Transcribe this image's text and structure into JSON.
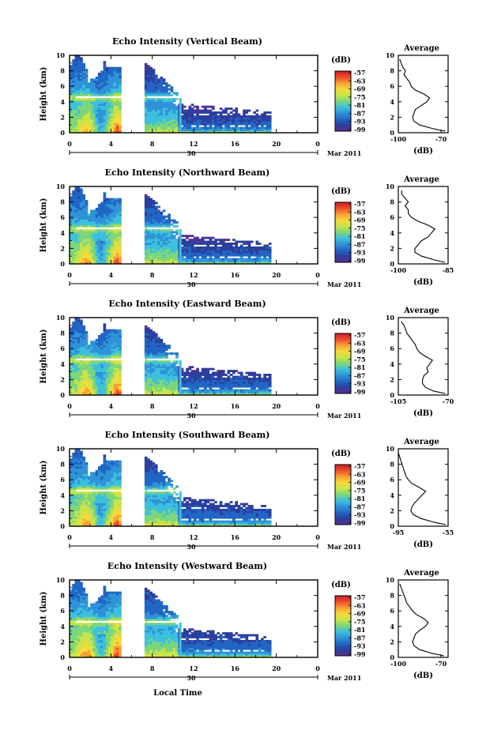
{
  "figure": {
    "date_label": "Mar 2011",
    "day_label": "30",
    "xlabel_bottom": "Local Time",
    "colors": {
      "scale": [
        "#5a2f91",
        "#2c3f9e",
        "#2166c4",
        "#2f93d8",
        "#3dc0dd",
        "#7dd67a",
        "#c7e44a",
        "#f6d93a",
        "#f7a034",
        "#ec4d2b",
        "#c71f2a"
      ]
    }
  },
  "chart_data": [
    {
      "type": "heatmap",
      "title": "Echo Intensity (Vertical Beam)",
      "ylabel": "Height (km)",
      "xlabel": "",
      "xticks": [
        "0",
        "4",
        "8",
        "12",
        "16",
        "20",
        "0"
      ],
      "yticks": [
        "0",
        "2",
        "4",
        "6",
        "8",
        "10"
      ],
      "xlim": [
        0,
        24
      ],
      "ylim": [
        0,
        10
      ],
      "colorbar": {
        "label": "(dB)",
        "ticks": [
          "-57",
          "-63",
          "-69",
          "-75",
          "-81",
          "-87",
          "-93",
          "-99"
        ]
      },
      "profile": {
        "title": "Average",
        "xlabel": "(dB)",
        "xticks": [
          "-100",
          "-70"
        ],
        "xlim": [
          -100,
          -65
        ],
        "yticks": [
          "0",
          "2",
          "4",
          "6",
          "8",
          "10"
        ],
        "points": [
          [
            -67,
            0.2
          ],
          [
            -75,
            0.5
          ],
          [
            -85,
            1.0
          ],
          [
            -89,
            1.5
          ],
          [
            -90,
            2.0
          ],
          [
            -89,
            2.5
          ],
          [
            -88,
            3.0
          ],
          [
            -84,
            3.5
          ],
          [
            -80,
            4.0
          ],
          [
            -78,
            4.5
          ],
          [
            -82,
            5.0
          ],
          [
            -88,
            5.5
          ],
          [
            -91,
            6.0
          ],
          [
            -92,
            6.5
          ],
          [
            -94,
            7.0
          ],
          [
            -96,
            7.5
          ],
          [
            -95,
            8.0
          ],
          [
            -97,
            8.5
          ],
          [
            -98,
            9.0
          ],
          [
            -99,
            9.5
          ]
        ]
      }
    },
    {
      "type": "heatmap",
      "title": "Echo Intensity (Northward Beam)",
      "ylabel": "Height (km)",
      "xlabel": "",
      "xticks": [
        "0",
        "4",
        "8",
        "12",
        "16",
        "20",
        "0"
      ],
      "yticks": [
        "0",
        "2",
        "4",
        "6",
        "8",
        "10"
      ],
      "xlim": [
        0,
        24
      ],
      "ylim": [
        0,
        10
      ],
      "colorbar": {
        "label": "(dB)",
        "ticks": [
          "-57",
          "-63",
          "-69",
          "-75",
          "-81",
          "-87",
          "-93",
          "-99"
        ]
      },
      "profile": {
        "title": "Average",
        "xlabel": "(dB)",
        "xticks": [
          "-100",
          "-85"
        ],
        "xlim": [
          -100,
          -85
        ],
        "yticks": [
          "0",
          "2",
          "4",
          "6",
          "8",
          "10"
        ],
        "points": [
          [
            -86,
            0.2
          ],
          [
            -89,
            0.5
          ],
          [
            -93,
            1.0
          ],
          [
            -95,
            1.5
          ],
          [
            -95,
            2.0
          ],
          [
            -94,
            2.5
          ],
          [
            -93,
            3.0
          ],
          [
            -91,
            3.5
          ],
          [
            -90,
            4.0
          ],
          [
            -89,
            4.5
          ],
          [
            -91,
            5.0
          ],
          [
            -94,
            5.5
          ],
          [
            -96,
            6.0
          ],
          [
            -97,
            6.5
          ],
          [
            -97,
            7.0
          ],
          [
            -98,
            7.5
          ],
          [
            -97,
            8.0
          ],
          [
            -98,
            8.5
          ],
          [
            -99,
            9.0
          ],
          [
            -99,
            9.5
          ]
        ]
      }
    },
    {
      "type": "heatmap",
      "title": "Echo Intensity (Eastward Beam)",
      "ylabel": "Height (km)",
      "xlabel": "",
      "xticks": [
        "0",
        "4",
        "8",
        "12",
        "16",
        "20",
        "0"
      ],
      "yticks": [
        "0",
        "2",
        "4",
        "6",
        "8",
        "10"
      ],
      "xlim": [
        0,
        24
      ],
      "ylim": [
        0,
        10
      ],
      "colorbar": {
        "label": "(dB)",
        "ticks": [
          "-57",
          "-63",
          "-69",
          "-75",
          "-81",
          "-87",
          "-93",
          "-99"
        ]
      },
      "profile": {
        "title": "Average",
        "xlabel": "(dB)",
        "xticks": [
          "-105",
          "-70"
        ],
        "xlim": [
          -105,
          -70
        ],
        "yticks": [
          "0",
          "2",
          "4",
          "6",
          "8",
          "10"
        ],
        "points": [
          [
            -72,
            0.2
          ],
          [
            -80,
            0.5
          ],
          [
            -86,
            1.0
          ],
          [
            -88,
            1.5
          ],
          [
            -88,
            2.0
          ],
          [
            -87,
            2.5
          ],
          [
            -84,
            3.0
          ],
          [
            -85,
            3.5
          ],
          [
            -83,
            4.0
          ],
          [
            -81,
            4.5
          ],
          [
            -86,
            5.0
          ],
          [
            -90,
            5.5
          ],
          [
            -92,
            6.0
          ],
          [
            -93,
            6.5
          ],
          [
            -95,
            7.0
          ],
          [
            -97,
            7.5
          ],
          [
            -99,
            8.0
          ],
          [
            -100,
            8.5
          ],
          [
            -101,
            9.0
          ],
          [
            -103,
            9.5
          ]
        ]
      }
    },
    {
      "type": "heatmap",
      "title": "Echo Intensity (Southward Beam)",
      "ylabel": "Height (km)",
      "xlabel": "",
      "xticks": [
        "0",
        "4",
        "8",
        "12",
        "16",
        "20",
        "0"
      ],
      "yticks": [
        "0",
        "2",
        "4",
        "6",
        "8",
        "10"
      ],
      "xlim": [
        0,
        24
      ],
      "ylim": [
        0,
        10
      ],
      "colorbar": {
        "label": "(dB)",
        "ticks": [
          "-57",
          "-63",
          "-69",
          "-75",
          "-81",
          "-87",
          "-93",
          "-99"
        ]
      },
      "profile": {
        "title": "Average",
        "xlabel": "(dB)",
        "xticks": [
          "-95",
          "-55"
        ],
        "xlim": [
          -95,
          -55
        ],
        "yticks": [
          "0",
          "2",
          "4",
          "6",
          "8",
          "10"
        ],
        "points": [
          [
            -57,
            0.2
          ],
          [
            -66,
            0.5
          ],
          [
            -77,
            1.0
          ],
          [
            -83,
            1.5
          ],
          [
            -85,
            2.0
          ],
          [
            -84,
            2.5
          ],
          [
            -82,
            3.0
          ],
          [
            -79,
            3.5
          ],
          [
            -76,
            4.0
          ],
          [
            -73,
            4.5
          ],
          [
            -78,
            5.0
          ],
          [
            -84,
            5.5
          ],
          [
            -87,
            6.0
          ],
          [
            -89,
            6.5
          ],
          [
            -90,
            7.0
          ],
          [
            -91,
            7.5
          ],
          [
            -92,
            8.0
          ],
          [
            -93,
            8.5
          ],
          [
            -94,
            9.0
          ],
          [
            -95,
            9.5
          ]
        ]
      }
    },
    {
      "type": "heatmap",
      "title": "Echo Intensity (Westward Beam)",
      "ylabel": "Height (km)",
      "xlabel": "",
      "xticks": [
        "0",
        "4",
        "8",
        "12",
        "16",
        "20",
        "0"
      ],
      "yticks": [
        "0",
        "2",
        "4",
        "6",
        "8",
        "10"
      ],
      "xlim": [
        0,
        24
      ],
      "ylim": [
        0,
        10
      ],
      "colorbar": {
        "label": "(dB)",
        "ticks": [
          "-57",
          "-63",
          "-69",
          "-75",
          "-81",
          "-87",
          "-93",
          "-99"
        ]
      },
      "profile": {
        "title": "Average",
        "xlabel": "(dB)",
        "xticks": [
          "-100",
          "-70"
        ],
        "xlim": [
          -100,
          -65
        ],
        "yticks": [
          "0",
          "2",
          "4",
          "6",
          "8",
          "10"
        ],
        "points": [
          [
            -68,
            0.2
          ],
          [
            -76,
            0.5
          ],
          [
            -85,
            1.0
          ],
          [
            -89,
            1.5
          ],
          [
            -90,
            2.0
          ],
          [
            -89,
            2.5
          ],
          [
            -88,
            3.0
          ],
          [
            -85,
            3.5
          ],
          [
            -81,
            4.0
          ],
          [
            -79,
            4.5
          ],
          [
            -82,
            5.0
          ],
          [
            -87,
            5.5
          ],
          [
            -90,
            6.0
          ],
          [
            -92,
            6.5
          ],
          [
            -94,
            7.0
          ],
          [
            -95,
            7.5
          ],
          [
            -96,
            8.0
          ],
          [
            -97,
            8.5
          ],
          [
            -98,
            9.0
          ],
          [
            -99,
            9.5
          ]
        ]
      }
    }
  ]
}
